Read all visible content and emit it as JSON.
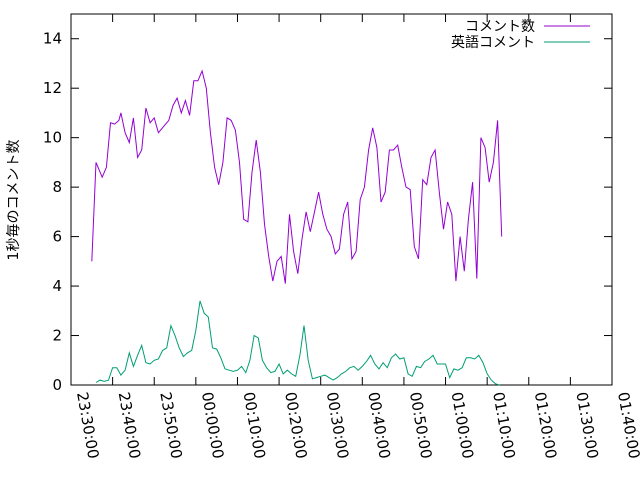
{
  "chart_data": {
    "type": "line",
    "title": "",
    "xlabel": "",
    "ylabel": "1秒毎のコメント数",
    "ylim": [
      0,
      15
    ],
    "yticks": [
      0,
      2,
      4,
      6,
      8,
      10,
      12,
      14
    ],
    "xlim": [
      "23:30:00",
      "01:40:00"
    ],
    "xticks": [
      "23:30:00",
      "23:40:00",
      "23:50:00",
      "00:00:00",
      "00:10:00",
      "00:20:00",
      "00:30:00",
      "00:40:00",
      "00:50:00",
      "01:00:00",
      "01:10:00",
      "01:20:00",
      "01:30:00",
      "01:40:00"
    ],
    "grid": false,
    "legend_position": "top-right",
    "series": [
      {
        "name": "コメント数",
        "color": "#9400d3",
        "points": [
          [
            "23:35:00",
            5.0
          ],
          [
            "23:36:00",
            9.0
          ],
          [
            "23:37:30",
            8.4
          ],
          [
            "23:38:30",
            8.8
          ],
          [
            "23:39:30",
            10.6
          ],
          [
            "23:40:30",
            10.55
          ],
          [
            "23:41:30",
            10.7
          ],
          [
            "23:42:00",
            11.0
          ],
          [
            "23:43:00",
            10.2
          ],
          [
            "23:44:00",
            9.8
          ],
          [
            "23:45:00",
            10.8
          ],
          [
            "23:46:00",
            9.2
          ],
          [
            "23:47:00",
            9.5
          ],
          [
            "23:48:00",
            11.2
          ],
          [
            "23:49:00",
            10.6
          ],
          [
            "23:50:00",
            10.8
          ],
          [
            "23:51:00",
            10.2
          ],
          [
            "23:52:30",
            10.5
          ],
          [
            "23:53:30",
            10.7
          ],
          [
            "23:54:30",
            11.3
          ],
          [
            "23:55:30",
            11.6
          ],
          [
            "23:56:30",
            11.0
          ],
          [
            "23:57:30",
            11.5
          ],
          [
            "23:58:30",
            10.9
          ],
          [
            "23:59:30",
            12.3
          ],
          [
            "00:00:30",
            12.3
          ],
          [
            "00:01:30",
            12.7
          ],
          [
            "00:02:30",
            12.0
          ],
          [
            "00:03:30",
            10.2
          ],
          [
            "00:04:30",
            8.8
          ],
          [
            "00:05:30",
            8.1
          ],
          [
            "00:06:30",
            9.0
          ],
          [
            "00:07:30",
            10.8
          ],
          [
            "00:08:30",
            10.7
          ],
          [
            "00:09:30",
            10.3
          ],
          [
            "00:10:30",
            9.0
          ],
          [
            "00:11:30",
            6.7
          ],
          [
            "00:12:30",
            6.6
          ],
          [
            "00:13:30",
            8.6
          ],
          [
            "00:14:30",
            9.9
          ],
          [
            "00:15:30",
            8.6
          ],
          [
            "00:16:30",
            6.5
          ],
          [
            "00:17:30",
            5.2
          ],
          [
            "00:18:30",
            4.2
          ],
          [
            "00:19:30",
            5.0
          ],
          [
            "00:20:30",
            5.2
          ],
          [
            "00:21:30",
            4.1
          ],
          [
            "00:22:30",
            6.9
          ],
          [
            "00:23:30",
            5.4
          ],
          [
            "00:24:30",
            4.5
          ],
          [
            "00:25:30",
            5.9
          ],
          [
            "00:26:30",
            7.0
          ],
          [
            "00:27:30",
            6.2
          ],
          [
            "00:28:30",
            7.0
          ],
          [
            "00:29:30",
            7.8
          ],
          [
            "00:30:30",
            6.9
          ],
          [
            "00:31:30",
            6.3
          ],
          [
            "00:32:30",
            6.0
          ],
          [
            "00:33:30",
            5.3
          ],
          [
            "00:34:30",
            5.5
          ],
          [
            "00:35:30",
            6.9
          ],
          [
            "00:36:30",
            7.4
          ],
          [
            "00:37:30",
            5.1
          ],
          [
            "00:38:30",
            5.4
          ],
          [
            "00:39:30",
            7.5
          ],
          [
            "00:40:30",
            8.0
          ],
          [
            "00:41:30",
            9.5
          ],
          [
            "00:42:30",
            10.4
          ],
          [
            "00:43:30",
            9.6
          ],
          [
            "00:44:30",
            7.4
          ],
          [
            "00:45:30",
            7.8
          ],
          [
            "00:46:30",
            9.5
          ],
          [
            "00:47:30",
            9.5
          ],
          [
            "00:48:30",
            9.7
          ],
          [
            "00:49:30",
            8.8
          ],
          [
            "00:50:30",
            8.0
          ],
          [
            "00:51:30",
            7.9
          ],
          [
            "00:52:30",
            5.6
          ],
          [
            "00:53:30",
            5.1
          ],
          [
            "00:54:30",
            8.3
          ],
          [
            "00:55:30",
            8.1
          ],
          [
            "00:56:30",
            9.2
          ],
          [
            "00:57:30",
            9.5
          ],
          [
            "00:58:30",
            7.8
          ],
          [
            "00:59:30",
            6.3
          ],
          [
            "01:00:30",
            7.4
          ],
          [
            "01:01:30",
            6.9
          ],
          [
            "01:02:30",
            4.2
          ],
          [
            "01:03:30",
            6.0
          ],
          [
            "01:04:30",
            4.6
          ],
          [
            "01:05:30",
            6.7
          ],
          [
            "01:06:30",
            8.2
          ],
          [
            "01:07:30",
            4.3
          ],
          [
            "01:08:30",
            10.0
          ],
          [
            "01:09:30",
            9.6
          ],
          [
            "01:10:30",
            8.2
          ],
          [
            "01:11:30",
            9.0
          ],
          [
            "01:12:30",
            10.7
          ],
          [
            "01:13:30",
            6.0
          ]
        ]
      },
      {
        "name": "英語コメント",
        "color": "#009e73",
        "points": [
          [
            "23:36:00",
            0.1
          ],
          [
            "23:37:00",
            0.2
          ],
          [
            "23:38:00",
            0.15
          ],
          [
            "23:39:00",
            0.2
          ],
          [
            "23:40:00",
            0.7
          ],
          [
            "23:41:00",
            0.7
          ],
          [
            "23:42:00",
            0.4
          ],
          [
            "23:43:00",
            0.6
          ],
          [
            "23:44:00",
            1.3
          ],
          [
            "23:45:00",
            0.75
          ],
          [
            "23:46:00",
            1.2
          ],
          [
            "23:47:00",
            1.6
          ],
          [
            "23:48:00",
            0.9
          ],
          [
            "23:49:00",
            0.85
          ],
          [
            "23:50:00",
            1.0
          ],
          [
            "23:51:00",
            1.05
          ],
          [
            "23:52:00",
            1.4
          ],
          [
            "23:53:00",
            1.5
          ],
          [
            "23:54:00",
            2.4
          ],
          [
            "23:55:00",
            2.0
          ],
          [
            "23:56:00",
            1.5
          ],
          [
            "23:57:00",
            1.15
          ],
          [
            "23:58:00",
            1.3
          ],
          [
            "23:59:00",
            1.4
          ],
          [
            "00:00:00",
            2.2
          ],
          [
            "00:01:00",
            3.4
          ],
          [
            "00:02:00",
            2.9
          ],
          [
            "00:03:00",
            2.75
          ],
          [
            "00:04:00",
            1.5
          ],
          [
            "00:05:00",
            1.45
          ],
          [
            "00:06:00",
            1.1
          ],
          [
            "00:07:00",
            0.65
          ],
          [
            "00:08:00",
            0.6
          ],
          [
            "00:09:00",
            0.55
          ],
          [
            "00:10:00",
            0.6
          ],
          [
            "00:11:00",
            0.75
          ],
          [
            "00:12:00",
            0.5
          ],
          [
            "00:13:00",
            1.0
          ],
          [
            "00:14:00",
            2.0
          ],
          [
            "00:15:00",
            1.9
          ],
          [
            "00:16:00",
            1.0
          ],
          [
            "00:17:00",
            0.7
          ],
          [
            "00:18:00",
            0.5
          ],
          [
            "00:19:00",
            0.55
          ],
          [
            "00:20:00",
            0.85
          ],
          [
            "00:21:00",
            0.45
          ],
          [
            "00:22:00",
            0.6
          ],
          [
            "00:23:00",
            0.45
          ],
          [
            "00:24:00",
            0.35
          ],
          [
            "00:25:00",
            1.2
          ],
          [
            "00:26:00",
            2.4
          ],
          [
            "00:27:00",
            1.0
          ],
          [
            "00:28:00",
            0.25
          ],
          [
            "00:29:00",
            0.3
          ],
          [
            "00:30:00",
            0.35
          ],
          [
            "00:31:00",
            0.4
          ],
          [
            "00:32:00",
            0.3
          ],
          [
            "00:33:00",
            0.2
          ],
          [
            "00:34:00",
            0.3
          ],
          [
            "00:35:00",
            0.45
          ],
          [
            "00:36:00",
            0.55
          ],
          [
            "00:37:00",
            0.7
          ],
          [
            "00:38:00",
            0.75
          ],
          [
            "00:39:00",
            0.6
          ],
          [
            "00:40:00",
            0.75
          ],
          [
            "00:41:00",
            0.95
          ],
          [
            "00:42:00",
            1.2
          ],
          [
            "00:43:00",
            0.85
          ],
          [
            "00:44:00",
            0.65
          ],
          [
            "00:45:00",
            0.9
          ],
          [
            "00:46:00",
            0.7
          ],
          [
            "00:47:00",
            1.1
          ],
          [
            "00:48:00",
            1.25
          ],
          [
            "00:49:00",
            1.05
          ],
          [
            "00:50:00",
            1.1
          ],
          [
            "00:51:00",
            0.45
          ],
          [
            "00:52:00",
            0.35
          ],
          [
            "00:53:00",
            0.75
          ],
          [
            "00:54:00",
            0.7
          ],
          [
            "00:55:00",
            0.95
          ],
          [
            "00:56:00",
            1.05
          ],
          [
            "00:57:00",
            1.2
          ],
          [
            "00:58:00",
            0.85
          ],
          [
            "00:59:00",
            0.85
          ],
          [
            "01:00:00",
            0.85
          ],
          [
            "01:01:00",
            0.3
          ],
          [
            "01:02:00",
            0.65
          ],
          [
            "01:03:00",
            0.6
          ],
          [
            "01:04:00",
            0.7
          ],
          [
            "01:05:00",
            1.1
          ],
          [
            "01:06:00",
            1.1
          ],
          [
            "01:07:00",
            1.05
          ],
          [
            "01:08:00",
            1.2
          ],
          [
            "01:09:00",
            0.9
          ],
          [
            "01:10:00",
            0.45
          ],
          [
            "01:11:00",
            0.2
          ],
          [
            "01:12:00",
            0.05
          ],
          [
            "01:13:00",
            0.0
          ]
        ]
      }
    ]
  }
}
